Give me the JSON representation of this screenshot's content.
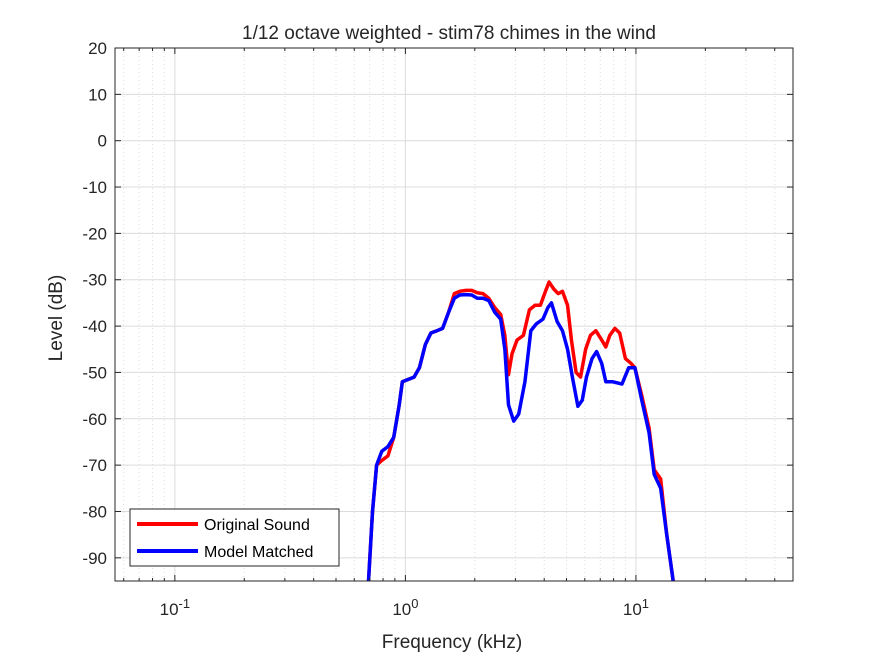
{
  "chart_data": {
    "type": "line",
    "title": "1/12 octave weighted - stim78 chimes in the wind",
    "xlabel": "Frequency (kHz)",
    "ylabel": "Level (dB)",
    "x_scale": "log",
    "xlim": [
      0.055,
      48
    ],
    "ylim": [
      -95,
      20
    ],
    "grid": true,
    "minor_grid": true,
    "legend_placement": "bottom-left",
    "x_ticks": [
      {
        "value": 0.1,
        "base": "10",
        "exp": "-1"
      },
      {
        "value": 1,
        "base": "10",
        "exp": "0"
      },
      {
        "value": 10,
        "base": "10",
        "exp": "1"
      }
    ],
    "y_ticks": [
      20,
      10,
      0,
      -10,
      -20,
      -30,
      -40,
      -50,
      -60,
      -70,
      -80,
      -90
    ],
    "series": [
      {
        "name": "Original Sound",
        "color": "#ff0000",
        "points": [
          [
            0.69,
            -96
          ],
          [
            0.72,
            -80
          ],
          [
            0.75,
            -70
          ],
          [
            0.79,
            -69
          ],
          [
            0.84,
            -68
          ],
          [
            0.89,
            -64
          ],
          [
            0.94,
            -57
          ],
          [
            0.97,
            -52
          ],
          [
            1.03,
            -51.5
          ],
          [
            1.09,
            -51
          ],
          [
            1.15,
            -49
          ],
          [
            1.22,
            -44
          ],
          [
            1.29,
            -41.5
          ],
          [
            1.37,
            -41
          ],
          [
            1.45,
            -40.5
          ],
          [
            1.54,
            -37
          ],
          [
            1.63,
            -33
          ],
          [
            1.72,
            -32.5
          ],
          [
            1.83,
            -32.3
          ],
          [
            1.94,
            -32.3
          ],
          [
            2.05,
            -32.8
          ],
          [
            2.17,
            -33
          ],
          [
            2.3,
            -34
          ],
          [
            2.44,
            -36
          ],
          [
            2.59,
            -37.5
          ],
          [
            2.7,
            -42
          ],
          [
            2.8,
            -50.5
          ],
          [
            2.9,
            -46
          ],
          [
            3.05,
            -43
          ],
          [
            3.25,
            -42
          ],
          [
            3.45,
            -36.5
          ],
          [
            3.65,
            -35.5
          ],
          [
            3.85,
            -35.5
          ],
          [
            4.05,
            -32.5
          ],
          [
            4.2,
            -30.5
          ],
          [
            4.4,
            -32
          ],
          [
            4.6,
            -33
          ],
          [
            4.8,
            -32.5
          ],
          [
            5.05,
            -35.5
          ],
          [
            5.25,
            -43
          ],
          [
            5.5,
            -50
          ],
          [
            5.75,
            -51
          ],
          [
            6.05,
            -45
          ],
          [
            6.35,
            -42
          ],
          [
            6.7,
            -41
          ],
          [
            7.1,
            -43
          ],
          [
            7.4,
            -44.5
          ],
          [
            7.7,
            -42
          ],
          [
            8.1,
            -40.5
          ],
          [
            8.5,
            -41.5
          ],
          [
            9.0,
            -47
          ],
          [
            9.5,
            -48
          ],
          [
            9.9,
            -49
          ],
          [
            10.6,
            -55
          ],
          [
            11.4,
            -62
          ],
          [
            12.0,
            -71
          ],
          [
            12.8,
            -73
          ],
          [
            13.6,
            -85
          ],
          [
            14.6,
            -96
          ]
        ]
      },
      {
        "name": "Model Matched",
        "color": "#0000ff",
        "points": [
          [
            0.69,
            -96
          ],
          [
            0.72,
            -80
          ],
          [
            0.75,
            -70
          ],
          [
            0.79,
            -67
          ],
          [
            0.84,
            -66
          ],
          [
            0.89,
            -64
          ],
          [
            0.94,
            -57
          ],
          [
            0.97,
            -52
          ],
          [
            1.03,
            -51.5
          ],
          [
            1.09,
            -51
          ],
          [
            1.15,
            -49
          ],
          [
            1.22,
            -44
          ],
          [
            1.29,
            -41.5
          ],
          [
            1.37,
            -41
          ],
          [
            1.45,
            -40.5
          ],
          [
            1.54,
            -37
          ],
          [
            1.63,
            -34
          ],
          [
            1.72,
            -33.3
          ],
          [
            1.83,
            -33.2
          ],
          [
            1.94,
            -33.3
          ],
          [
            2.05,
            -34
          ],
          [
            2.17,
            -34
          ],
          [
            2.3,
            -34.5
          ],
          [
            2.44,
            -37
          ],
          [
            2.59,
            -38.5
          ],
          [
            2.7,
            -45
          ],
          [
            2.8,
            -57
          ],
          [
            2.95,
            -60.5
          ],
          [
            3.1,
            -59
          ],
          [
            3.3,
            -52
          ],
          [
            3.5,
            -41
          ],
          [
            3.7,
            -39.5
          ],
          [
            3.95,
            -38.5
          ],
          [
            4.15,
            -36
          ],
          [
            4.3,
            -35
          ],
          [
            4.55,
            -39
          ],
          [
            4.8,
            -41
          ],
          [
            5.05,
            -45
          ],
          [
            5.3,
            -51
          ],
          [
            5.6,
            -57.3
          ],
          [
            5.85,
            -56
          ],
          [
            6.1,
            -51
          ],
          [
            6.45,
            -47
          ],
          [
            6.75,
            -45.5
          ],
          [
            7.1,
            -48
          ],
          [
            7.4,
            -52
          ],
          [
            7.9,
            -52
          ],
          [
            8.7,
            -52.5
          ],
          [
            9.3,
            -49
          ],
          [
            9.9,
            -49
          ],
          [
            10.6,
            -56
          ],
          [
            11.4,
            -63
          ],
          [
            12.0,
            -72
          ],
          [
            12.8,
            -75
          ],
          [
            13.6,
            -85
          ],
          [
            14.6,
            -96
          ]
        ]
      }
    ]
  }
}
